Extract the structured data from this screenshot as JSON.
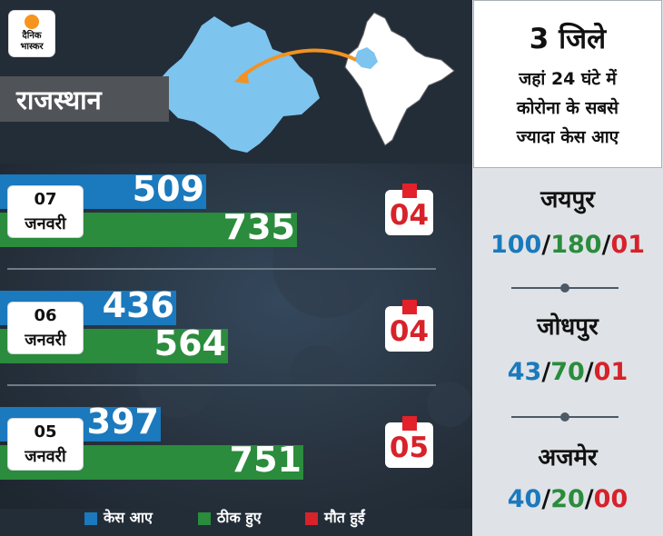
{
  "brand": {
    "logo_line1": "दैनिक",
    "logo_line2": "भास्कर"
  },
  "state_label": "राजस्थान",
  "colors": {
    "cases": "#1b79bd",
    "recovered": "#2a8c3c",
    "deaths": "#d7222a"
  },
  "legend": [
    {
      "label": "केस आए",
      "color": "#1b79bd"
    },
    {
      "label": "ठीक हुए",
      "color": "#2a8c3c"
    },
    {
      "label": "मौत हुईं",
      "color": "#d7222a"
    }
  ],
  "chart_data": {
    "type": "bar",
    "categories": [
      "07 जनवरी",
      "06 जनवरी",
      "05 जनवरी"
    ],
    "series": [
      {
        "name": "केस आए",
        "values": [
          509,
          436,
          397
        ]
      },
      {
        "name": "ठीक हुए",
        "values": [
          735,
          564,
          751
        ]
      },
      {
        "name": "मौत हुईं",
        "values": [
          4,
          4,
          5
        ]
      }
    ]
  },
  "rows": [
    {
      "date_num": "07",
      "date_month": "जनवरी",
      "cases": "509",
      "recovered": "735",
      "deaths": "04"
    },
    {
      "date_num": "06",
      "date_month": "जनवरी",
      "cases": "436",
      "recovered": "564",
      "deaths": "04"
    },
    {
      "date_num": "05",
      "date_month": "जनवरी",
      "cases": "397",
      "recovered": "751",
      "deaths": "05"
    }
  ],
  "side_panel": {
    "title_big": "3 जिले",
    "title_lines": [
      "जहां 24 घंटे में",
      "कोरोना के सबसे",
      "ज्यादा केस आए"
    ],
    "districts": [
      {
        "name": "जयपुर",
        "cases": "100",
        "recovered": "180",
        "deaths": "01"
      },
      {
        "name": "जोधपुर",
        "cases": "43",
        "recovered": "70",
        "deaths": "01"
      },
      {
        "name": "अजमेर",
        "cases": "40",
        "recovered": "20",
        "deaths": "00"
      }
    ]
  }
}
